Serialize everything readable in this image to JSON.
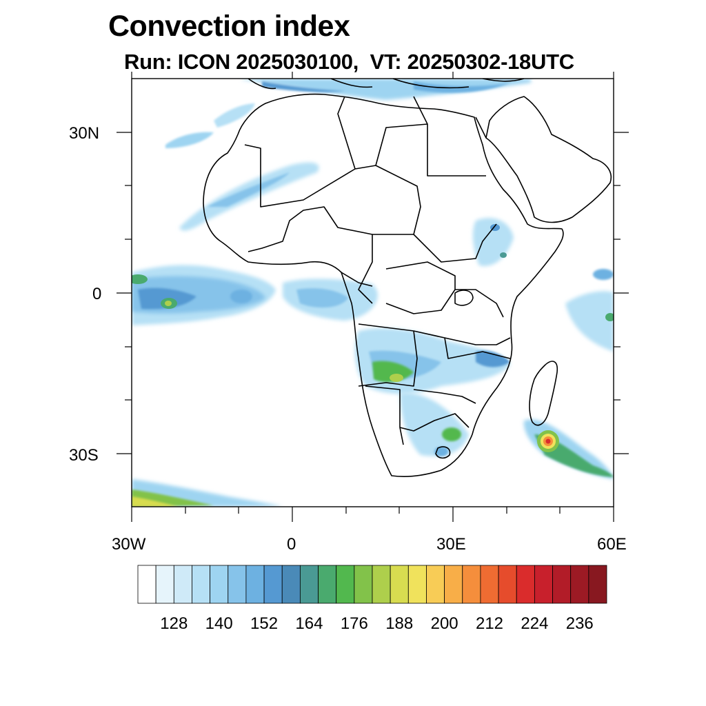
{
  "title": "Convection index",
  "subtitle": "Run: ICON 2025030100,  VT: 20250302-18UTC",
  "map": {
    "region": "Africa",
    "lat_range": [
      -40,
      40
    ],
    "lon_range": [
      -30,
      60
    ],
    "lat_labels": [
      "30N",
      "0",
      "30S"
    ],
    "lon_labels": [
      "30W",
      "0",
      "30E",
      "60E"
    ]
  },
  "colorbar": {
    "tick_labels": [
      "128",
      "140",
      "152",
      "164",
      "176",
      "188",
      "200",
      "212",
      "224",
      "236"
    ],
    "colors": [
      "#ffffff",
      "#e6f4fb",
      "#cfeaf8",
      "#b6e0f5",
      "#9ed4f1",
      "#86c3ea",
      "#6db1e1",
      "#5599d2",
      "#4a8ab8",
      "#4a9a94",
      "#4aaa6e",
      "#52b84e",
      "#82c24a",
      "#aecf4c",
      "#d8dc50",
      "#f0e25c",
      "#f8cc56",
      "#f8ae48",
      "#f58e3c",
      "#ef6c32",
      "#e64c2c",
      "#da2c2c",
      "#c8202c",
      "#b21c28",
      "#9c1a24",
      "#881820"
    ]
  }
}
